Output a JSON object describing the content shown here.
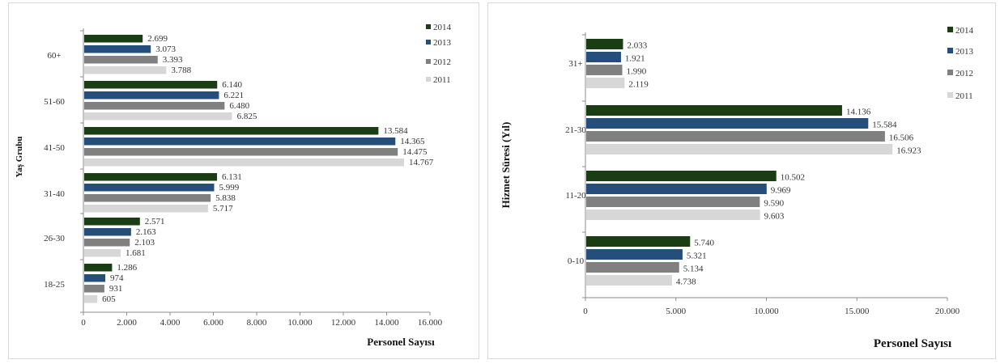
{
  "chart_data": [
    {
      "type": "bar",
      "orientation": "horizontal",
      "categories": [
        "60+",
        "51-60",
        "41-50",
        "31-40",
        "26-30",
        "18-25"
      ],
      "series": [
        {
          "name": "2014",
          "values": [
            2699,
            6140,
            13584,
            6131,
            2571,
            1286
          ],
          "labels": [
            "2.699",
            "6.140",
            "13.584",
            "6.131",
            "2.571",
            "1.286"
          ]
        },
        {
          "name": "2013",
          "values": [
            3073,
            6221,
            14365,
            5999,
            2163,
            974
          ],
          "labels": [
            "3.073",
            "6.221",
            "14.365",
            "5.999",
            "2.163",
            "974"
          ]
        },
        {
          "name": "2012",
          "values": [
            3393,
            6480,
            14475,
            5838,
            2103,
            931
          ],
          "labels": [
            "3.393",
            "6.480",
            "14.475",
            "5.838",
            "2.103",
            "931"
          ]
        },
        {
          "name": "2011",
          "values": [
            3788,
            6825,
            14767,
            5717,
            1681,
            605
          ],
          "labels": [
            "3.788",
            "6.825",
            "14.767",
            "5.717",
            "1.681",
            "605"
          ]
        }
      ],
      "xlim": [
        0,
        16000
      ],
      "xticks": [
        0,
        2000,
        4000,
        6000,
        8000,
        10000,
        12000,
        14000,
        16000
      ],
      "xtick_labels": [
        "0",
        "2.000",
        "4.000",
        "6.000",
        "8.000",
        "10.000",
        "12.000",
        "14.000",
        "16.000"
      ],
      "xlabel": "Personel Sayısı",
      "ylabel": "Yaş Grubu",
      "legend": "top-right",
      "grid": false
    },
    {
      "type": "bar",
      "orientation": "horizontal",
      "categories": [
        "31+",
        "21-30",
        "11-20",
        "0-10"
      ],
      "series": [
        {
          "name": "2014",
          "values": [
            2033,
            14136,
            10502,
            5740
          ],
          "labels": [
            "2.033",
            "14.136",
            "10.502",
            "5.740"
          ]
        },
        {
          "name": "2013",
          "values": [
            1921,
            15584,
            9969,
            5321
          ],
          "labels": [
            "1.921",
            "15.584",
            "9.969",
            "5.321"
          ]
        },
        {
          "name": "2012",
          "values": [
            1990,
            16506,
            9590,
            5134
          ],
          "labels": [
            "1.990",
            "16.506",
            "9.590",
            "5.134"
          ]
        },
        {
          "name": "2011",
          "values": [
            2119,
            16923,
            9603,
            4738
          ],
          "labels": [
            "2.119",
            "16.923",
            "9.603",
            "4.738"
          ]
        }
      ],
      "xlim": [
        0,
        20000
      ],
      "xticks": [
        0,
        5000,
        10000,
        15000,
        20000
      ],
      "xtick_labels": [
        "0",
        "5.000",
        "10.000",
        "15.000",
        "20.000"
      ],
      "xlabel": "Personel Sayısı",
      "ylabel": "Hizmet Süresi (Yıl)",
      "legend": "top-right",
      "grid": false
    }
  ],
  "colors": {
    "2014": "#1a3d13",
    "2013": "#254e7d",
    "2012": "#808080",
    "2011": "#d7d7d7",
    "axis": "#8c8c8c"
  }
}
